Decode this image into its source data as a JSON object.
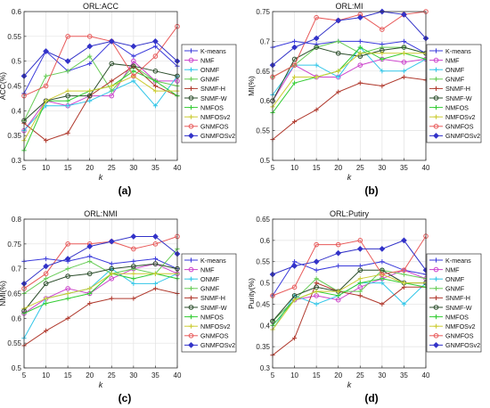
{
  "figure": {
    "panel_labels": [
      "(a)",
      "(b)",
      "(c)",
      "(d)"
    ]
  },
  "chart_data": [
    {
      "type": "line",
      "title": "ORL:ACC",
      "xlabel": "k",
      "ylabel": "ACC(%)",
      "x": [
        5,
        10,
        15,
        20,
        25,
        30,
        35,
        40
      ],
      "xlim": [
        5,
        40
      ],
      "ylim": [
        0.3,
        0.6
      ],
      "xticks": [
        5,
        10,
        15,
        20,
        25,
        30,
        35,
        40
      ],
      "yticks": [
        0.3,
        0.35,
        0.4,
        0.45,
        0.5,
        0.55,
        0.6
      ],
      "grid": true,
      "legend": "right",
      "series": [
        {
          "name": "K-means",
          "values": [
            0.435,
            0.52,
            0.48,
            0.495,
            0.54,
            0.51,
            0.53,
            0.49
          ]
        },
        {
          "name": "NMF",
          "values": [
            0.36,
            0.42,
            0.41,
            0.43,
            0.43,
            0.5,
            0.46,
            0.46
          ]
        },
        {
          "name": "ONMF",
          "values": [
            0.36,
            0.41,
            0.41,
            0.42,
            0.44,
            0.46,
            0.41,
            0.47
          ]
        },
        {
          "name": "GNMF",
          "values": [
            0.38,
            0.47,
            0.48,
            0.51,
            0.44,
            0.49,
            0.46,
            0.45
          ]
        },
        {
          "name": "SNMF-H",
          "values": [
            0.375,
            0.34,
            0.355,
            0.43,
            0.46,
            0.49,
            0.45,
            0.43
          ]
        },
        {
          "name": "SNMF-W",
          "values": [
            0.38,
            0.42,
            0.43,
            0.43,
            0.495,
            0.49,
            0.48,
            0.47
          ]
        },
        {
          "name": "NMFOS",
          "values": [
            0.32,
            0.42,
            0.42,
            0.44,
            0.45,
            0.48,
            0.46,
            0.43
          ]
        },
        {
          "name": "NMFOSv2",
          "values": [
            0.34,
            0.42,
            0.44,
            0.44,
            0.45,
            0.47,
            0.44,
            0.44
          ]
        },
        {
          "name": "GNMFOS",
          "values": [
            0.43,
            0.45,
            0.55,
            0.55,
            0.54,
            0.47,
            0.51,
            0.57
          ]
        },
        {
          "name": "GNMFOSv2",
          "values": [
            0.47,
            0.52,
            0.5,
            0.53,
            0.54,
            0.53,
            0.54,
            0.5
          ]
        }
      ]
    },
    {
      "type": "line",
      "title": "ORL:MI",
      "xlabel": "k",
      "ylabel": "MI(%)",
      "x": [
        5,
        10,
        15,
        20,
        25,
        30,
        35,
        40
      ],
      "xlim": [
        5,
        40
      ],
      "ylim": [
        0.5,
        0.75
      ],
      "xticks": [
        5,
        10,
        15,
        20,
        25,
        30,
        35,
        40
      ],
      "yticks": [
        0.5,
        0.55,
        0.6,
        0.65,
        0.7,
        0.75
      ],
      "grid": true,
      "legend": "right",
      "series": [
        {
          "name": "K-means",
          "values": [
            0.69,
            0.7,
            0.695,
            0.7,
            0.7,
            0.695,
            0.7,
            0.68
          ]
        },
        {
          "name": "NMF",
          "values": [
            0.6,
            0.66,
            0.64,
            0.64,
            0.66,
            0.67,
            0.665,
            0.67
          ]
        },
        {
          "name": "ONMF",
          "values": [
            0.61,
            0.66,
            0.66,
            0.64,
            0.69,
            0.65,
            0.65,
            0.67
          ]
        },
        {
          "name": "GNMF",
          "values": [
            0.64,
            0.66,
            0.69,
            0.7,
            0.68,
            0.69,
            0.69,
            0.68
          ]
        },
        {
          "name": "SNMF-H",
          "values": [
            0.535,
            0.565,
            0.585,
            0.615,
            0.63,
            0.625,
            0.64,
            0.635
          ]
        },
        {
          "name": "SNMF-W",
          "values": [
            0.6,
            0.67,
            0.69,
            0.68,
            0.675,
            0.685,
            0.69,
            0.68
          ]
        },
        {
          "name": "NMFOS",
          "values": [
            0.58,
            0.63,
            0.64,
            0.65,
            0.69,
            0.67,
            0.68,
            0.67
          ]
        },
        {
          "name": "NMFOSv2",
          "values": [
            0.59,
            0.64,
            0.64,
            0.65,
            0.68,
            0.68,
            0.68,
            0.68
          ]
        },
        {
          "name": "GNMFOS",
          "values": [
            0.64,
            0.66,
            0.74,
            0.735,
            0.745,
            0.72,
            0.745,
            0.75
          ]
        },
        {
          "name": "GNMFOSv2",
          "values": [
            0.66,
            0.69,
            0.705,
            0.735,
            0.74,
            0.75,
            0.745,
            0.705
          ]
        }
      ]
    },
    {
      "type": "line",
      "title": "ORL:NMI",
      "xlabel": "k",
      "ylabel": "NMI(%)",
      "x": [
        5,
        10,
        15,
        20,
        25,
        30,
        35,
        40
      ],
      "xlim": [
        5,
        40
      ],
      "ylim": [
        0.5,
        0.8
      ],
      "xticks": [
        5,
        10,
        15,
        20,
        25,
        30,
        35,
        40
      ],
      "yticks": [
        0.5,
        0.55,
        0.6,
        0.65,
        0.7,
        0.75,
        0.8
      ],
      "grid": true,
      "legend": "right",
      "series": [
        {
          "name": "K-means",
          "values": [
            0.715,
            0.72,
            0.715,
            0.725,
            0.71,
            0.715,
            0.72,
            0.7
          ]
        },
        {
          "name": "NMF",
          "values": [
            0.61,
            0.64,
            0.66,
            0.65,
            0.68,
            0.7,
            0.71,
            0.69
          ]
        },
        {
          "name": "ONMF",
          "values": [
            0.56,
            0.64,
            0.65,
            0.66,
            0.7,
            0.67,
            0.67,
            0.69
          ]
        },
        {
          "name": "GNMF",
          "values": [
            0.65,
            0.68,
            0.7,
            0.715,
            0.69,
            0.7,
            0.69,
            0.74
          ]
        },
        {
          "name": "SNMF-H",
          "values": [
            0.545,
            0.575,
            0.6,
            0.63,
            0.64,
            0.64,
            0.66,
            0.65
          ]
        },
        {
          "name": "SNMF-W",
          "values": [
            0.615,
            0.67,
            0.685,
            0.69,
            0.7,
            0.705,
            0.71,
            0.7
          ]
        },
        {
          "name": "NMFOS",
          "values": [
            0.61,
            0.63,
            0.64,
            0.65,
            0.69,
            0.68,
            0.69,
            0.68
          ]
        },
        {
          "name": "NMFOSv2",
          "values": [
            0.62,
            0.64,
            0.65,
            0.66,
            0.69,
            0.69,
            0.69,
            0.69
          ]
        },
        {
          "name": "GNMFOS",
          "values": [
            0.66,
            0.69,
            0.75,
            0.75,
            0.755,
            0.74,
            0.75,
            0.765
          ]
        },
        {
          "name": "GNMFOSv2",
          "values": [
            0.67,
            0.705,
            0.72,
            0.745,
            0.755,
            0.765,
            0.765,
            0.73
          ]
        }
      ]
    },
    {
      "type": "line",
      "title": "ORL:Putiry",
      "xlabel": "k",
      "ylabel": "Purity(%)",
      "x": [
        5,
        10,
        15,
        20,
        25,
        30,
        35,
        40
      ],
      "xlim": [
        5,
        40
      ],
      "ylim": [
        0.3,
        0.65
      ],
      "xticks": [
        5,
        10,
        15,
        20,
        25,
        30,
        35,
        40
      ],
      "yticks": [
        0.3,
        0.35,
        0.4,
        0.45,
        0.5,
        0.55,
        0.6,
        0.65
      ],
      "grid": true,
      "legend": "right",
      "series": [
        {
          "name": "K-means",
          "values": [
            0.47,
            0.55,
            0.53,
            0.54,
            0.54,
            0.55,
            0.53,
            0.52
          ]
        },
        {
          "name": "NMF",
          "values": [
            0.41,
            0.46,
            0.47,
            0.46,
            0.49,
            0.51,
            0.53,
            0.51
          ]
        },
        {
          "name": "ONMF",
          "values": [
            0.39,
            0.47,
            0.45,
            0.47,
            0.5,
            0.5,
            0.45,
            0.5
          ]
        },
        {
          "name": "GNMF",
          "values": [
            0.41,
            0.46,
            0.51,
            0.48,
            0.48,
            0.53,
            0.52,
            0.51
          ]
        },
        {
          "name": "SNMF-H",
          "values": [
            0.33,
            0.37,
            0.5,
            0.48,
            0.47,
            0.45,
            0.49,
            0.49
          ]
        },
        {
          "name": "SNMF-W",
          "values": [
            0.41,
            0.47,
            0.49,
            0.48,
            0.53,
            0.53,
            0.5,
            0.5
          ]
        },
        {
          "name": "NMFOS",
          "values": [
            0.4,
            0.46,
            0.48,
            0.47,
            0.5,
            0.51,
            0.5,
            0.49
          ]
        },
        {
          "name": "NMFOSv2",
          "values": [
            0.39,
            0.46,
            0.48,
            0.48,
            0.51,
            0.52,
            0.5,
            0.5
          ]
        },
        {
          "name": "GNMFOS",
          "values": [
            0.47,
            0.49,
            0.59,
            0.59,
            0.6,
            0.52,
            0.53,
            0.61
          ]
        },
        {
          "name": "GNMFOSv2",
          "values": [
            0.52,
            0.54,
            0.55,
            0.57,
            0.58,
            0.58,
            0.6,
            0.53
          ]
        }
      ]
    }
  ],
  "series_colors": [
    "#3a3adb",
    "#cc44cc",
    "#33c6e8",
    "#66cc55",
    "#b03a2e",
    "#2b4d2b",
    "#33cc33",
    "#cccc33",
    "#e85a5a",
    "#3232c8"
  ],
  "series_markers": [
    "plus",
    "circle",
    "plus",
    "plus",
    "plus",
    "circle",
    "plus",
    "plus",
    "circle",
    "diamond"
  ]
}
